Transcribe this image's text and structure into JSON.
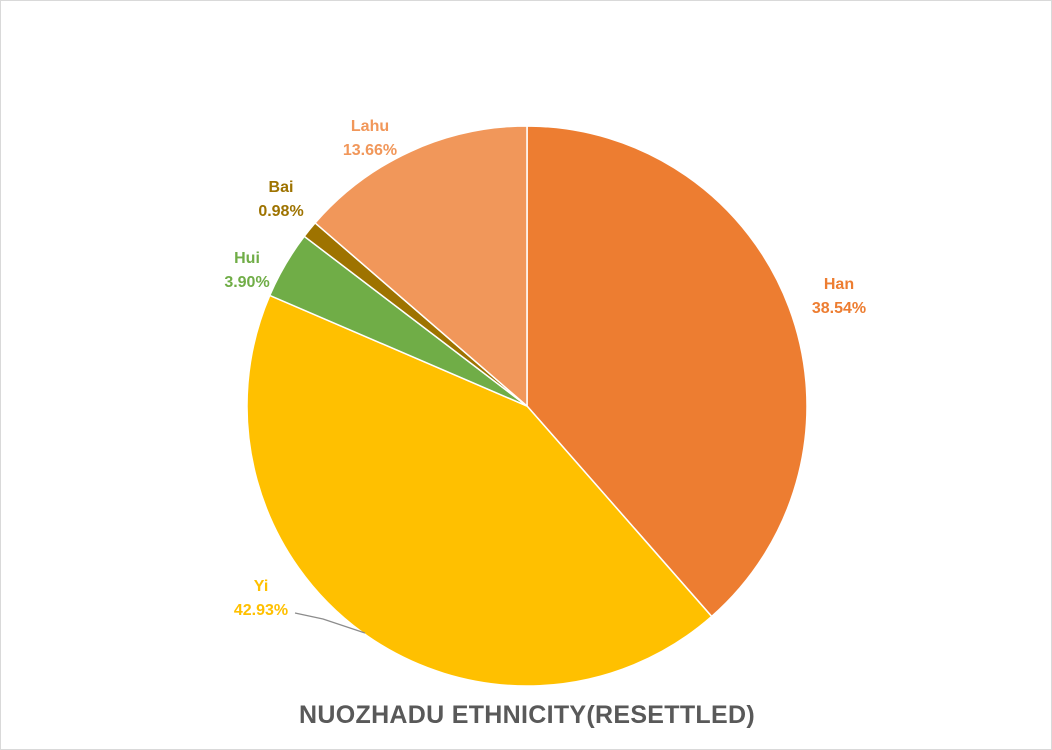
{
  "chart_data": {
    "type": "pie",
    "title": "NUOZHADU ETHNICITY(RESETTLED)",
    "start_angle_deg": 0,
    "direction": "clockwise",
    "slices": [
      {
        "label": "Han",
        "value": 38.54,
        "value_text": "38.54%",
        "color": "#ED7D31",
        "label_color": "#ED7D31"
      },
      {
        "label": "Yi",
        "value": 42.93,
        "value_text": "42.93%",
        "color": "#FFC000",
        "label_color": "#FFC000"
      },
      {
        "label": "Hui",
        "value": 3.9,
        "value_text": "3.90%",
        "color": "#70AD47",
        "label_color": "#70AD47"
      },
      {
        "label": "Bai",
        "value": 0.98,
        "value_text": "0.98%",
        "color": "#9E7300",
        "label_color": "#9E7300"
      },
      {
        "label": "Lahu",
        "value": 13.66,
        "value_text": "13.66%",
        "color": "#F1975A",
        "label_color": "#F1975A"
      }
    ]
  }
}
